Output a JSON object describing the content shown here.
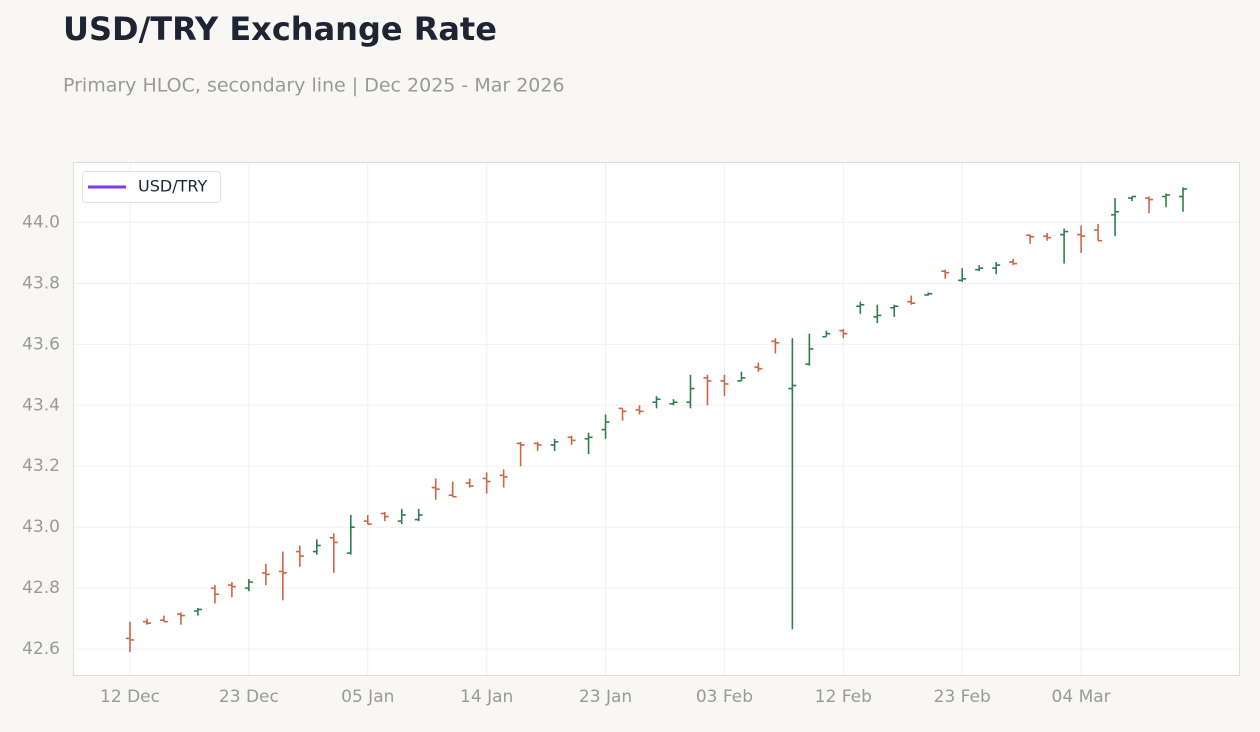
{
  "chart_data": {
    "type": "ohlc",
    "title": "USD/TRY Exchange Rate",
    "subtitle": "Primary HLOC, secondary line | Dec 2025 - Mar 2026",
    "categories": [
      "12 Dec",
      null,
      null,
      null,
      null,
      null,
      null,
      "23 Dec",
      null,
      null,
      null,
      null,
      null,
      null,
      "05 Jan",
      null,
      null,
      null,
      null,
      null,
      null,
      "14 Jan",
      null,
      null,
      null,
      null,
      null,
      null,
      "23 Jan",
      null,
      null,
      null,
      null,
      null,
      null,
      "03 Feb",
      null,
      null,
      null,
      null,
      null,
      null,
      "12 Feb",
      null,
      null,
      null,
      null,
      null,
      null,
      "23 Feb",
      null,
      null,
      null,
      null,
      null,
      null,
      "04 Mar",
      null,
      null,
      null,
      null,
      null,
      null
    ],
    "series": [
      {
        "name": "USD/TRY",
        "color": "#7c3aed",
        "open": [
          42.635,
          42.69,
          42.695,
          42.715,
          42.725,
          42.8,
          42.81,
          42.8,
          42.85,
          42.855,
          42.92,
          42.92,
          42.965,
          42.915,
          43.02,
          43.045,
          43.02,
          43.025,
          43.13,
          43.105,
          43.145,
          43.16,
          43.17,
          43.275,
          43.275,
          43.27,
          43.295,
          43.29,
          43.32,
          43.39,
          43.385,
          43.41,
          43.405,
          43.41,
          43.49,
          43.48,
          43.48,
          43.525,
          43.61,
          43.455,
          43.535,
          43.625,
          43.645,
          43.725,
          43.69,
          43.72,
          43.74,
          43.762,
          43.84,
          43.81,
          43.845,
          43.85,
          43.87,
          43.958,
          43.955,
          43.96,
          43.96,
          43.975,
          44.025,
          44.08,
          44.08,
          44.085,
          44.085
        ],
        "high": [
          42.69,
          42.7,
          42.71,
          42.72,
          42.735,
          42.81,
          42.82,
          42.83,
          42.88,
          42.92,
          42.94,
          42.96,
          42.98,
          43.04,
          43.04,
          43.05,
          43.06,
          43.06,
          43.16,
          43.15,
          43.16,
          43.18,
          43.19,
          43.28,
          43.28,
          43.29,
          43.3,
          43.31,
          43.37,
          43.39,
          43.4,
          43.43,
          43.42,
          43.5,
          43.5,
          43.5,
          43.51,
          43.54,
          43.62,
          43.62,
          43.635,
          43.645,
          43.65,
          43.74,
          43.73,
          43.73,
          43.76,
          43.77,
          43.845,
          43.85,
          43.86,
          43.87,
          43.88,
          43.96,
          43.965,
          43.98,
          43.99,
          43.995,
          44.08,
          44.085,
          44.085,
          44.095,
          44.115
        ],
        "low": [
          42.59,
          42.68,
          42.69,
          42.68,
          42.71,
          42.75,
          42.77,
          42.79,
          42.81,
          42.76,
          42.87,
          42.91,
          42.85,
          42.91,
          43.01,
          43.02,
          43.01,
          43.02,
          43.09,
          43.1,
          43.13,
          43.11,
          43.13,
          43.2,
          43.25,
          43.25,
          43.27,
          43.24,
          43.29,
          43.35,
          43.37,
          43.39,
          43.4,
          43.39,
          43.4,
          43.43,
          43.48,
          43.51,
          43.57,
          42.665,
          43.53,
          43.625,
          43.62,
          43.7,
          43.67,
          43.69,
          43.73,
          43.76,
          43.815,
          43.805,
          43.84,
          43.83,
          43.86,
          43.93,
          43.94,
          43.865,
          43.9,
          43.94,
          43.955,
          44.07,
          44.03,
          44.05,
          44.035
        ],
        "close": [
          42.63,
          42.685,
          42.69,
          42.71,
          42.73,
          42.78,
          42.805,
          42.82,
          42.845,
          42.85,
          42.905,
          42.94,
          42.95,
          43.0,
          43.01,
          43.035,
          43.04,
          43.04,
          43.125,
          43.1,
          43.135,
          43.15,
          43.165,
          43.27,
          43.27,
          43.28,
          43.285,
          43.295,
          43.345,
          43.38,
          43.38,
          43.42,
          43.41,
          43.455,
          43.48,
          43.47,
          43.49,
          43.52,
          43.605,
          43.465,
          43.585,
          43.635,
          43.635,
          43.73,
          43.695,
          43.725,
          43.735,
          43.766,
          43.835,
          43.815,
          43.85,
          43.86,
          43.865,
          43.953,
          43.95,
          43.97,
          43.955,
          43.94,
          44.035,
          44.085,
          44.075,
          44.09,
          44.11
        ]
      }
    ],
    "up_color": "#2e7d4f",
    "down_color": "#cc6644",
    "ylim": [
      42.515,
      44.195
    ],
    "yticks": [
      {
        "value": 42.6,
        "label": "42.6"
      },
      {
        "value": 42.8,
        "label": "42.8"
      },
      {
        "value": 43.0,
        "label": "43.0"
      },
      {
        "value": 43.2,
        "label": "43.2"
      },
      {
        "value": 43.4,
        "label": "43.4"
      },
      {
        "value": 43.6,
        "label": "43.6"
      },
      {
        "value": 43.8,
        "label": "43.8"
      },
      {
        "value": 44.0,
        "label": "44.0"
      }
    ],
    "grid": true,
    "legend": "upper left"
  }
}
